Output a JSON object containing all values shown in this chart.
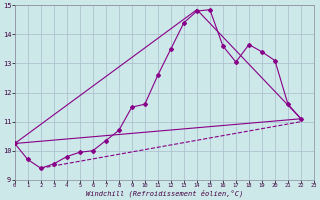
{
  "xlabel": "Windchill (Refroidissement éolien,°C)",
  "background_color": "#cce8e8",
  "grid_color": "#aabbcc",
  "line_color": "#880088",
  "xlim": [
    0,
    23
  ],
  "ylim": [
    9,
    15
  ],
  "yticks": [
    9,
    10,
    11,
    12,
    13,
    14,
    15
  ],
  "xticks": [
    0,
    1,
    2,
    3,
    4,
    5,
    6,
    7,
    8,
    9,
    10,
    11,
    12,
    13,
    14,
    15,
    16,
    17,
    18,
    19,
    20,
    21,
    22,
    23
  ],
  "series1_x": [
    0,
    1,
    2,
    3,
    4,
    5,
    6,
    7,
    8,
    9,
    10,
    11,
    12,
    13,
    14,
    15,
    16,
    17,
    18,
    19,
    20,
    21,
    22
  ],
  "series1_y": [
    10.25,
    9.7,
    9.4,
    9.55,
    9.8,
    9.95,
    10.0,
    10.35,
    10.7,
    11.5,
    11.6,
    12.6,
    13.5,
    14.4,
    14.8,
    14.85,
    13.6,
    13.05,
    13.65,
    13.4,
    13.1,
    11.6,
    11.1
  ],
  "line1_x": [
    0,
    22
  ],
  "line1_y": [
    10.25,
    11.1
  ],
  "line2_x": [
    0,
    14
  ],
  "line2_y": [
    10.25,
    14.85
  ],
  "line3_x": [
    14,
    22
  ],
  "line3_y": [
    14.85,
    11.1
  ],
  "bottom_line_x": [
    2,
    22
  ],
  "bottom_line_y": [
    9.4,
    11.0
  ]
}
